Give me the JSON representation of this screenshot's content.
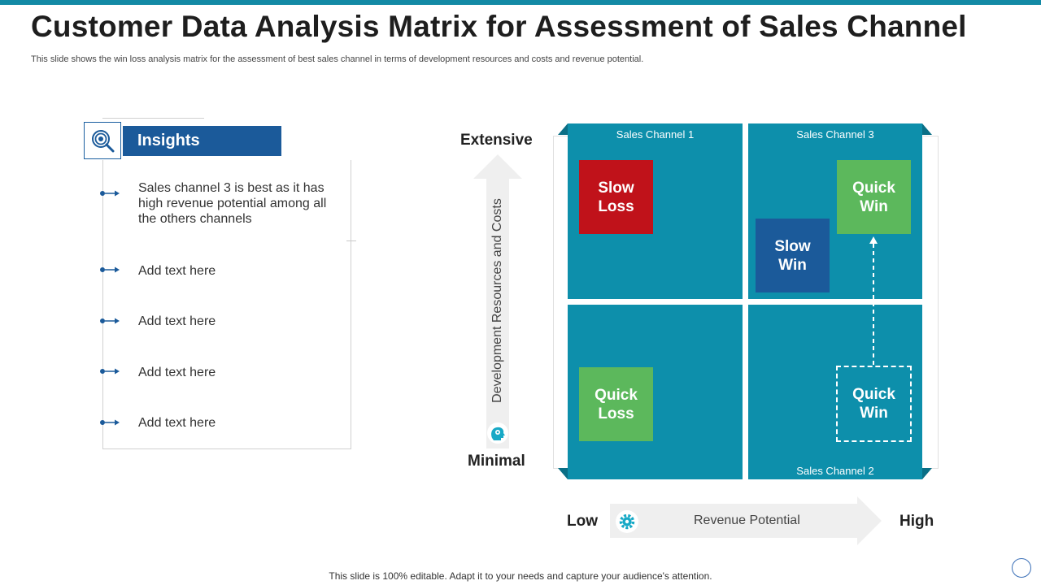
{
  "header": {
    "title": "Customer Data Analysis Matrix for Assessment of Sales Channel",
    "subtitle": "This slide shows the win loss analysis matrix for the assessment of best sales channel in terms of  development resources and costs and revenue potential."
  },
  "insights": {
    "heading": "Insights",
    "items": [
      "Sales channel 3 is best as it has high revenue potential  among all the others channels",
      "Add text here",
      "Add text here",
      "Add text here",
      "Add text here"
    ]
  },
  "matrix": {
    "y_axis": {
      "top": "Extensive",
      "bottom": "Minimal",
      "label": "Development Resources and Costs"
    },
    "x_axis": {
      "left": "Low",
      "right": "High",
      "label": "Revenue Potential"
    },
    "channels": {
      "top_left": "Sales Channel  1",
      "top_right": "Sales Channel  3",
      "bottom_right": "Sales Channel  2"
    },
    "boxes": {
      "slow_loss": "Slow Loss",
      "quick_win_top": "Quick Win",
      "slow_win": "Slow Win",
      "quick_loss": "Quick Loss",
      "quick_win_bottom": "Quick Win"
    },
    "colors": {
      "quadrant": "#0d8fab",
      "slow_loss": "#c0121a",
      "quick_win": "#5cb85c",
      "slow_win": "#1b5a9a",
      "quick_loss": "#5cb85c"
    }
  },
  "footer": {
    "text": "This slide is 100% editable. Adapt it to your needs and capture your audience's attention."
  },
  "icons": [
    "target-search-icon",
    "head-gear-icon",
    "gear-icon"
  ]
}
